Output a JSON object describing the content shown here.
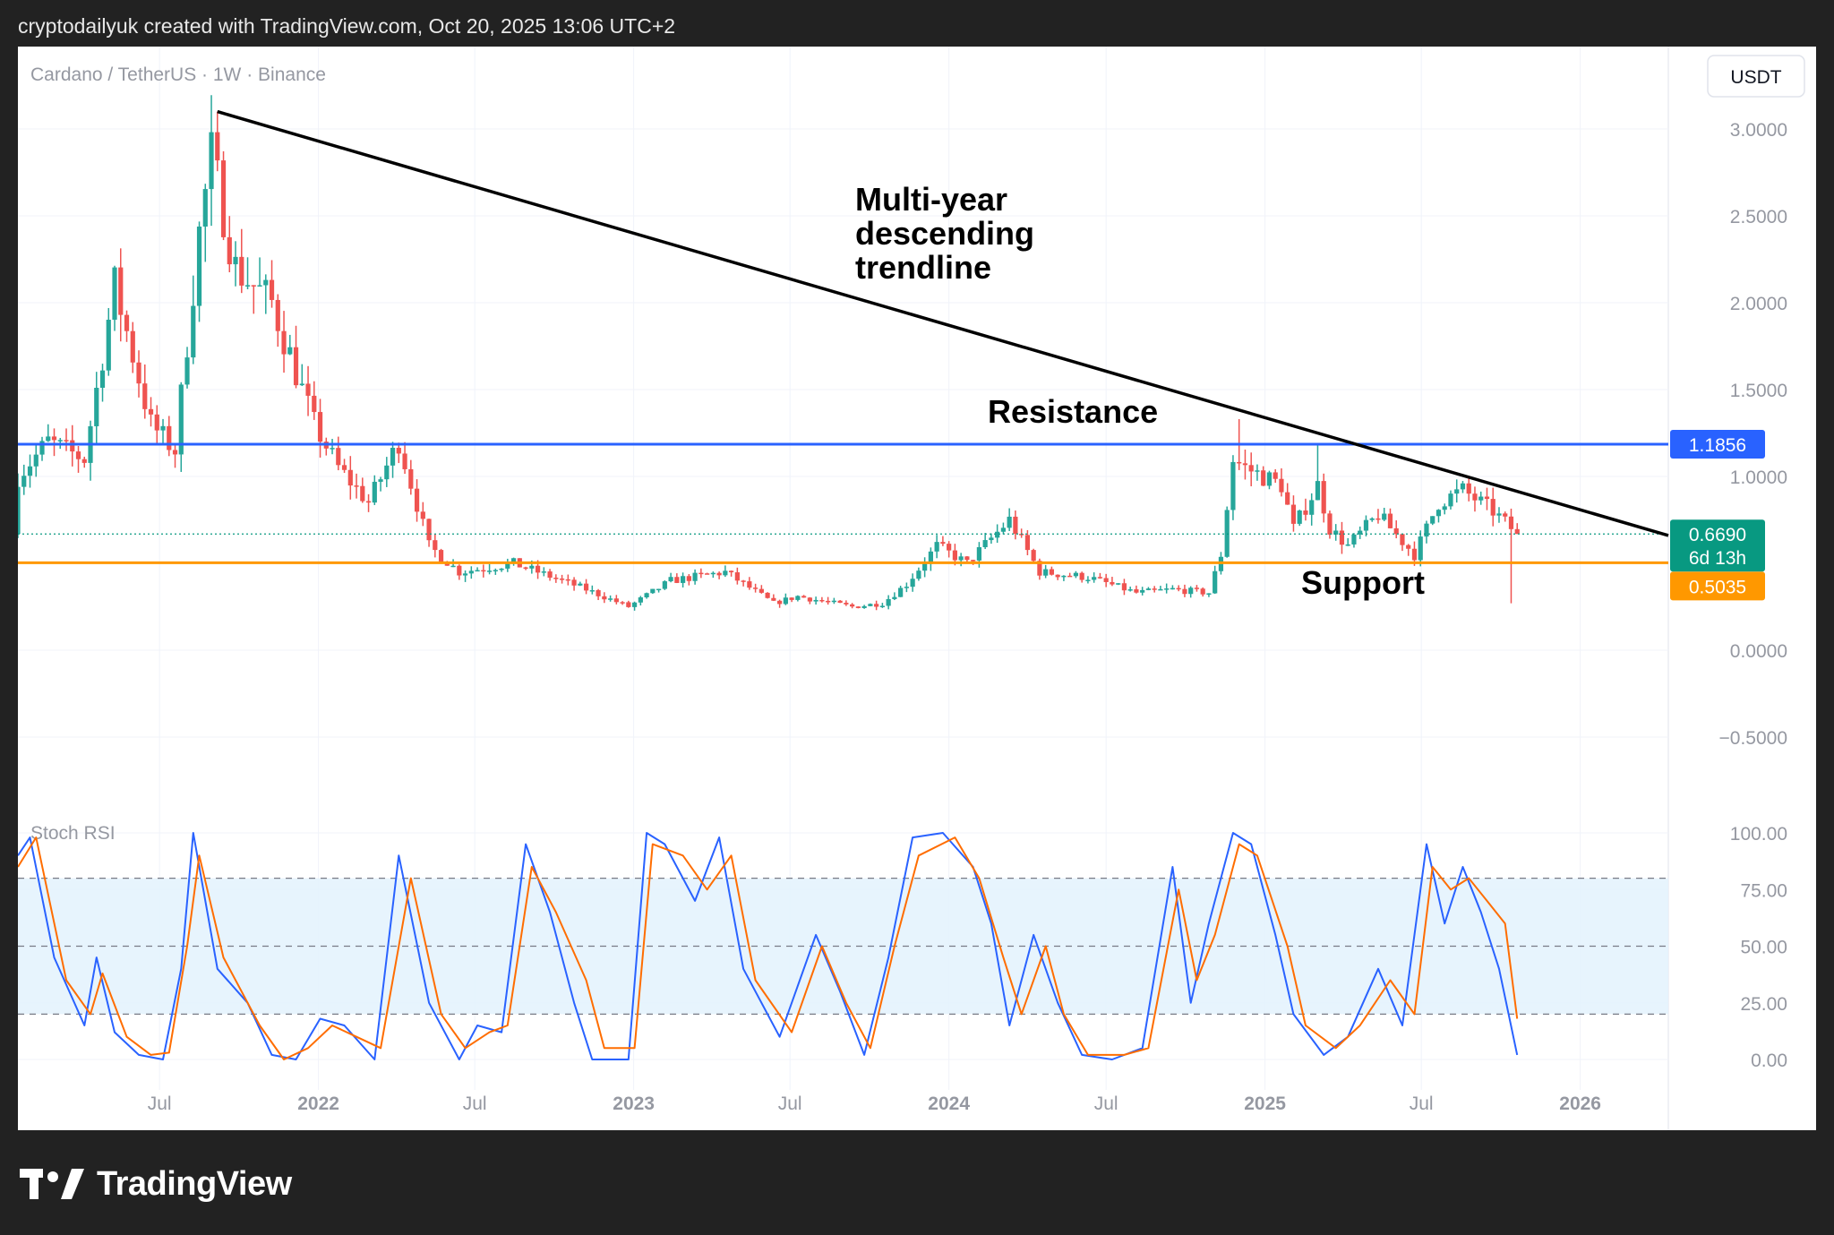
{
  "header": {
    "text": "cryptodailyuk created with TradingView.com, Oct 20, 2025 13:06 UTC+2"
  },
  "footer": {
    "logo_text": "TradingView"
  },
  "colors": {
    "up": "#26a69a",
    "down": "#ef5350",
    "resistance": "#2962ff",
    "support": "#ff9800",
    "trendline": "#000000",
    "current": "#089981",
    "k_line": "#2962ff",
    "d_line": "#ff6d00",
    "band": "#e3f2fd"
  },
  "chart_data": [
    {
      "type": "candlestick",
      "title": "Cardano / TetherUS · 1W · Binance",
      "currency_button": "USDT",
      "ylim": [
        -0.7,
        3.3
      ],
      "y_ticks": [
        "3.0000",
        "2.5000",
        "2.0000",
        "1.5000",
        "1.0000",
        "0.0000",
        "−0.5000"
      ],
      "y_tick_values": [
        3.0,
        2.5,
        2.0,
        1.5,
        1.0,
        0.0,
        -0.5
      ],
      "x_labels": [
        {
          "label": "Jul",
          "date": "2021-07-01",
          "bold": false
        },
        {
          "label": "2022",
          "date": "2022-01-01",
          "bold": true
        },
        {
          "label": "Jul",
          "date": "2022-07-01",
          "bold": false
        },
        {
          "label": "2023",
          "date": "2023-01-01",
          "bold": true
        },
        {
          "label": "Jul",
          "date": "2023-07-01",
          "bold": false
        },
        {
          "label": "2024",
          "date": "2024-01-01",
          "bold": true
        },
        {
          "label": "Jul",
          "date": "2024-07-01",
          "bold": false
        },
        {
          "label": "2025",
          "date": "2025-01-01",
          "bold": true
        },
        {
          "label": "Jul",
          "date": "2025-07-01",
          "bold": false
        },
        {
          "label": "2026",
          "date": "2026-01-01",
          "bold": true
        }
      ],
      "x_range": [
        "2021-01-18",
        "2026-04-13"
      ],
      "price_anchors": [
        [
          "2021-01-18",
          1.0
        ],
        [
          "2021-02-22",
          1.2
        ],
        [
          "2021-04-05",
          1.1
        ],
        [
          "2021-05-10",
          2.1
        ],
        [
          "2021-06-21",
          1.3
        ],
        [
          "2021-07-19",
          1.15
        ],
        [
          "2021-08-16",
          2.4
        ],
        [
          "2021-08-30",
          2.85
        ],
        [
          "2021-09-27",
          2.2
        ],
        [
          "2021-11-08",
          2.0
        ],
        [
          "2021-12-27",
          1.3
        ],
        [
          "2022-01-24",
          1.05
        ],
        [
          "2022-02-28",
          0.85
        ],
        [
          "2022-04-04",
          1.2
        ],
        [
          "2022-05-09",
          0.6
        ],
        [
          "2022-06-13",
          0.45
        ],
        [
          "2022-08-15",
          0.5
        ],
        [
          "2022-11-07",
          0.35
        ],
        [
          "2022-12-26",
          0.25
        ],
        [
          "2023-02-13",
          0.4
        ],
        [
          "2023-04-17",
          0.45
        ],
        [
          "2023-06-12",
          0.27
        ],
        [
          "2023-07-10",
          0.31
        ],
        [
          "2023-09-11",
          0.25
        ],
        [
          "2023-10-16",
          0.27
        ],
        [
          "2023-11-13",
          0.38
        ],
        [
          "2023-12-18",
          0.6
        ],
        [
          "2024-01-22",
          0.5
        ],
        [
          "2024-03-11",
          0.75
        ],
        [
          "2024-04-15",
          0.45
        ],
        [
          "2024-06-10",
          0.42
        ],
        [
          "2024-08-05",
          0.33
        ],
        [
          "2024-09-16",
          0.35
        ],
        [
          "2024-10-28",
          0.33
        ],
        [
          "2024-11-11",
          0.55
        ],
        [
          "2024-11-25",
          1.1
        ],
        [
          "2024-12-09",
          1.05
        ],
        [
          "2025-01-20",
          0.95
        ],
        [
          "2025-02-03",
          0.7
        ],
        [
          "2025-03-03",
          0.95
        ],
        [
          "2025-03-17",
          0.7
        ],
        [
          "2025-04-07",
          0.6
        ],
        [
          "2025-05-12",
          0.78
        ],
        [
          "2025-06-23",
          0.55
        ],
        [
          "2025-07-21",
          0.85
        ],
        [
          "2025-08-18",
          0.92
        ],
        [
          "2025-09-22",
          0.8
        ],
        [
          "2025-10-20",
          0.669
        ]
      ],
      "notable_wicks": [
        {
          "date": "2021-09-06",
          "high": 3.1
        },
        {
          "date": "2024-12-02",
          "high": 1.33
        },
        {
          "date": "2025-03-03",
          "high": 1.18
        },
        {
          "date": "2025-10-13",
          "low": 0.27
        }
      ],
      "resistance": {
        "value": 1.1856,
        "label": "1.1856",
        "text": "Resistance"
      },
      "support": {
        "value": 0.5035,
        "label": "0.5035",
        "text": "Support"
      },
      "current": {
        "value": 0.669,
        "label": "0.6690",
        "countdown": "6d 13h"
      },
      "trendline": {
        "start": [
          "2021-09-06",
          3.1
        ],
        "end": [
          "2026-04-13",
          0.66
        ],
        "label": [
          "Multi-year",
          "descending",
          "trendline"
        ]
      }
    },
    {
      "type": "line",
      "title": "Stoch RSI",
      "ylim": [
        -10,
        110
      ],
      "y_ticks": [
        "100.00",
        "75.00",
        "50.00",
        "25.00",
        "0.00"
      ],
      "y_tick_values": [
        100,
        75,
        50,
        25,
        0
      ],
      "bands": [
        80,
        50,
        20
      ],
      "series": [
        {
          "key": "k",
          "anchors": [
            [
              "2021-01-18",
              90
            ],
            [
              "2021-02-01",
              98
            ],
            [
              "2021-03-01",
              45
            ],
            [
              "2021-04-05",
              15
            ],
            [
              "2021-04-19",
              45
            ],
            [
              "2021-05-10",
              12
            ],
            [
              "2021-06-07",
              2
            ],
            [
              "2021-07-05",
              0
            ],
            [
              "2021-07-26",
              40
            ],
            [
              "2021-08-09",
              100
            ],
            [
              "2021-09-06",
              40
            ],
            [
              "2021-10-11",
              25
            ],
            [
              "2021-11-08",
              2
            ],
            [
              "2021-12-06",
              0
            ],
            [
              "2022-01-03",
              18
            ],
            [
              "2022-01-31",
              15
            ],
            [
              "2022-03-07",
              0
            ],
            [
              "2022-04-04",
              90
            ],
            [
              "2022-05-09",
              25
            ],
            [
              "2022-06-13",
              0
            ],
            [
              "2022-07-04",
              15
            ],
            [
              "2022-08-01",
              12
            ],
            [
              "2022-08-29",
              95
            ],
            [
              "2022-09-26",
              65
            ],
            [
              "2022-10-24",
              25
            ],
            [
              "2022-11-14",
              0
            ],
            [
              "2022-12-26",
              0
            ],
            [
              "2023-01-16",
              100
            ],
            [
              "2023-02-06",
              95
            ],
            [
              "2023-03-13",
              70
            ],
            [
              "2023-04-10",
              98
            ],
            [
              "2023-05-08",
              40
            ],
            [
              "2023-06-19",
              10
            ],
            [
              "2023-07-31",
              55
            ],
            [
              "2023-08-28",
              30
            ],
            [
              "2023-09-25",
              2
            ],
            [
              "2023-10-23",
              45
            ],
            [
              "2023-11-20",
              98
            ],
            [
              "2023-12-25",
              100
            ],
            [
              "2024-01-29",
              85
            ],
            [
              "2024-02-19",
              60
            ],
            [
              "2024-03-11",
              15
            ],
            [
              "2024-04-08",
              55
            ],
            [
              "2024-05-06",
              25
            ],
            [
              "2024-06-03",
              2
            ],
            [
              "2024-07-08",
              0
            ],
            [
              "2024-08-12",
              5
            ],
            [
              "2024-09-16",
              85
            ],
            [
              "2024-10-07",
              25
            ],
            [
              "2024-10-28",
              60
            ],
            [
              "2024-11-25",
              100
            ],
            [
              "2024-12-16",
              95
            ],
            [
              "2025-01-13",
              55
            ],
            [
              "2025-02-03",
              20
            ],
            [
              "2025-03-10",
              2
            ],
            [
              "2025-04-07",
              10
            ],
            [
              "2025-05-12",
              40
            ],
            [
              "2025-06-09",
              15
            ],
            [
              "2025-07-07",
              95
            ],
            [
              "2025-07-28",
              60
            ],
            [
              "2025-08-18",
              85
            ],
            [
              "2025-09-08",
              65
            ],
            [
              "2025-09-29",
              40
            ],
            [
              "2025-10-20",
              2
            ]
          ]
        },
        {
          "key": "d",
          "anchors": [
            [
              "2021-01-18",
              85
            ],
            [
              "2021-02-08",
              98
            ],
            [
              "2021-03-15",
              35
            ],
            [
              "2021-04-12",
              20
            ],
            [
              "2021-04-26",
              38
            ],
            [
              "2021-05-24",
              10
            ],
            [
              "2021-06-21",
              2
            ],
            [
              "2021-07-12",
              3
            ],
            [
              "2021-08-02",
              50
            ],
            [
              "2021-08-16",
              90
            ],
            [
              "2021-09-13",
              45
            ],
            [
              "2021-10-25",
              15
            ],
            [
              "2021-11-22",
              0
            ],
            [
              "2021-12-20",
              5
            ],
            [
              "2022-01-17",
              15
            ],
            [
              "2022-02-14",
              10
            ],
            [
              "2022-03-14",
              5
            ],
            [
              "2022-04-18",
              80
            ],
            [
              "2022-05-23",
              20
            ],
            [
              "2022-06-20",
              5
            ],
            [
              "2022-07-18",
              12
            ],
            [
              "2022-08-08",
              15
            ],
            [
              "2022-09-05",
              85
            ],
            [
              "2022-10-03",
              65
            ],
            [
              "2022-11-07",
              35
            ],
            [
              "2022-11-28",
              5
            ],
            [
              "2023-01-02",
              5
            ],
            [
              "2023-01-23",
              95
            ],
            [
              "2023-02-27",
              90
            ],
            [
              "2023-03-27",
              75
            ],
            [
              "2023-04-24",
              90
            ],
            [
              "2023-05-22",
              35
            ],
            [
              "2023-07-03",
              12
            ],
            [
              "2023-08-07",
              50
            ],
            [
              "2023-09-04",
              25
            ],
            [
              "2023-10-02",
              5
            ],
            [
              "2023-10-30",
              50
            ],
            [
              "2023-11-27",
              90
            ],
            [
              "2024-01-08",
              98
            ],
            [
              "2024-02-05",
              80
            ],
            [
              "2024-03-04",
              45
            ],
            [
              "2024-03-25",
              20
            ],
            [
              "2024-04-22",
              50
            ],
            [
              "2024-05-13",
              20
            ],
            [
              "2024-06-10",
              2
            ],
            [
              "2024-07-22",
              2
            ],
            [
              "2024-08-19",
              5
            ],
            [
              "2024-09-23",
              75
            ],
            [
              "2024-10-14",
              35
            ],
            [
              "2024-11-04",
              55
            ],
            [
              "2024-12-02",
              95
            ],
            [
              "2024-12-23",
              90
            ],
            [
              "2025-01-27",
              50
            ],
            [
              "2025-02-17",
              15
            ],
            [
              "2025-03-24",
              5
            ],
            [
              "2025-04-21",
              15
            ],
            [
              "2025-05-26",
              35
            ],
            [
              "2025-06-23",
              20
            ],
            [
              "2025-07-14",
              85
            ],
            [
              "2025-08-04",
              75
            ],
            [
              "2025-08-25",
              80
            ],
            [
              "2025-09-15",
              70
            ],
            [
              "2025-10-06",
              60
            ],
            [
              "2025-10-20",
              18
            ]
          ]
        }
      ]
    }
  ]
}
